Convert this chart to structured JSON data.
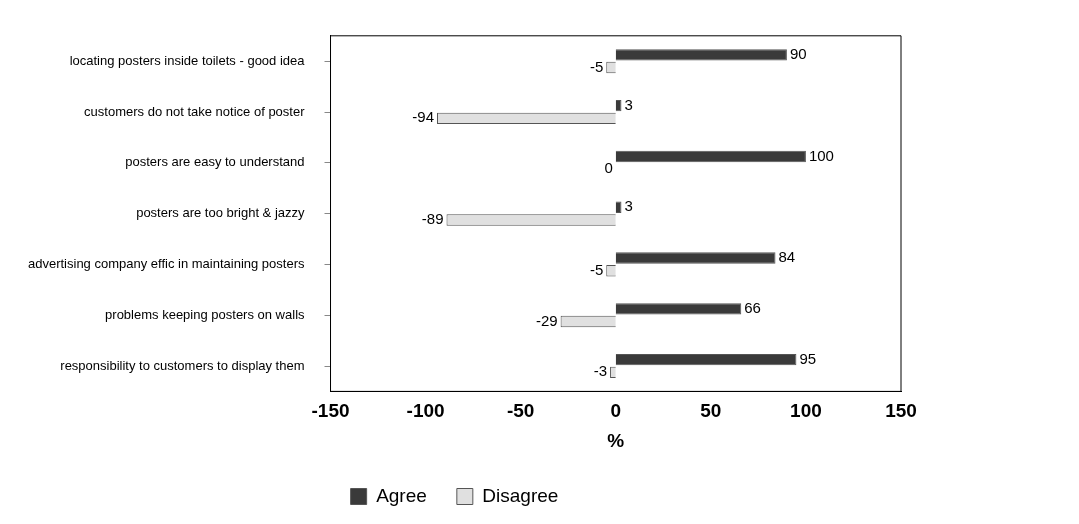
{
  "chart_data": {
    "type": "bar",
    "orientation": "horizontal",
    "xlabel": "%",
    "categories": [
      "locating posters inside toilets - good idea",
      "customers do not take notice of poster",
      "posters are easy to understand",
      "posters are too bright & jazzy",
      "advertising company effic in maintaining posters",
      "problems keeping posters on walls",
      "responsibility to customers to display them"
    ],
    "series": [
      {
        "name": "Agree",
        "color": "#3a3a3a",
        "values": [
          90,
          3,
          100,
          3,
          84,
          66,
          95
        ]
      },
      {
        "name": "Disagree",
        "color": "#e0e0e0",
        "values": [
          -5,
          -94,
          0,
          -89,
          -5,
          -29,
          -3
        ]
      }
    ],
    "xlim": [
      -150,
      150
    ],
    "xticks": [
      -150,
      -100,
      -50,
      0,
      50,
      100,
      150
    ],
    "data_labels": true,
    "grid": false,
    "legend": "bottom"
  }
}
